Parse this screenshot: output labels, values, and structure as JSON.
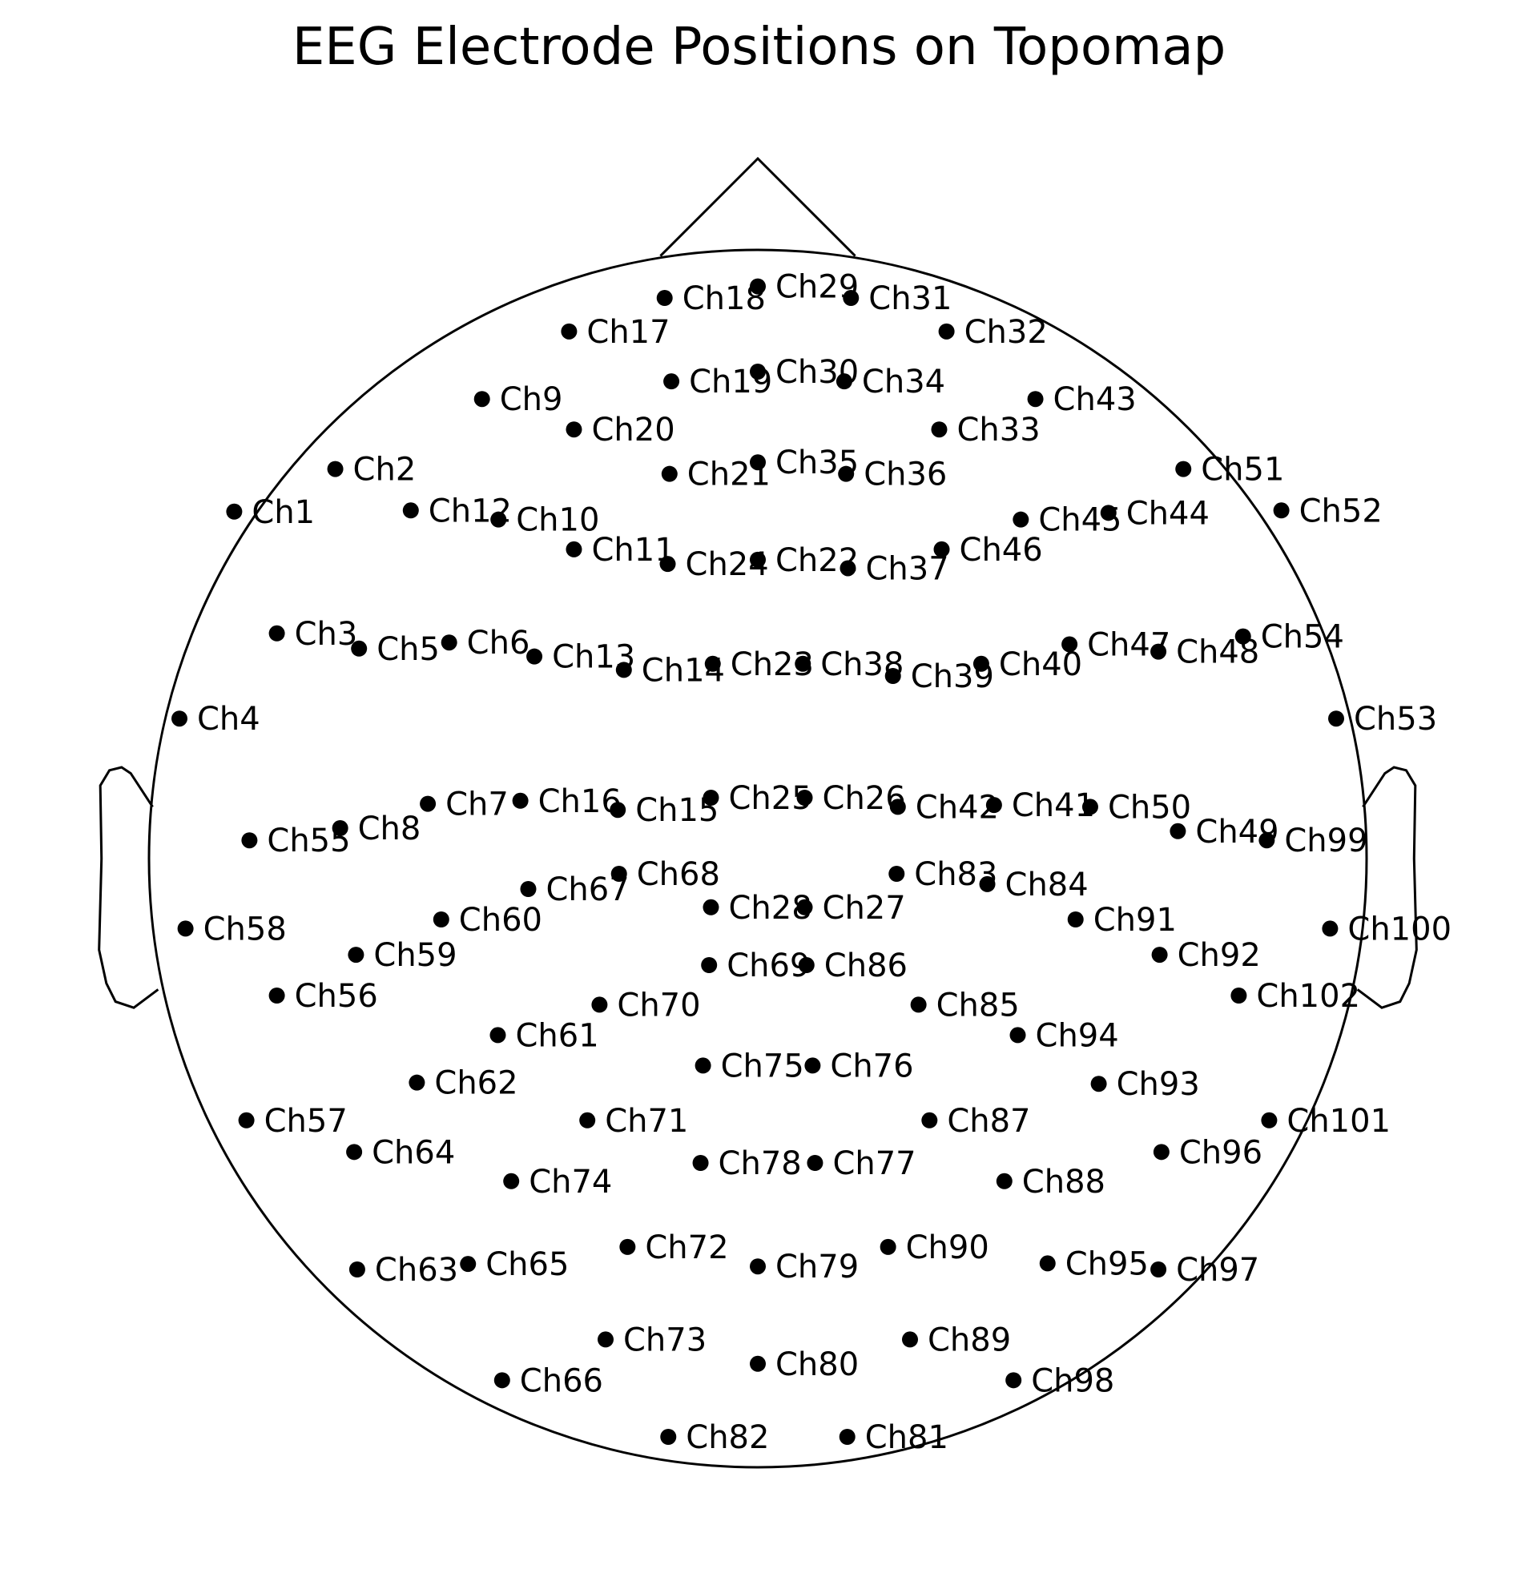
{
  "title": "EEG Electrode Positions on Topomap",
  "colors": {
    "line": "#000000",
    "marker": "#000000",
    "background": "#ffffff"
  },
  "chart_data": {
    "type": "scatter",
    "title": "EEG Electrode Positions on Topomap",
    "xlabel": "",
    "ylabel": "",
    "grid": false,
    "axes_visible": false,
    "units": "normalized head radius (head circle = 1.0)",
    "head": {
      "radius": 1.0,
      "nose": true,
      "ears": true
    },
    "points": [
      {
        "label": "Ch1",
        "x": -0.86,
        "y": 0.57
      },
      {
        "label": "Ch2",
        "x": -0.694,
        "y": 0.64
      },
      {
        "label": "Ch3",
        "x": -0.79,
        "y": 0.37
      },
      {
        "label": "Ch4",
        "x": -0.95,
        "y": 0.23
      },
      {
        "label": "Ch5",
        "x": -0.655,
        "y": 0.345
      },
      {
        "label": "Ch6",
        "x": -0.507,
        "y": 0.355
      },
      {
        "label": "Ch7",
        "x": -0.542,
        "y": 0.09
      },
      {
        "label": "Ch8",
        "x": -0.686,
        "y": 0.05
      },
      {
        "label": "Ch9",
        "x": -0.453,
        "y": 0.755
      },
      {
        "label": "Ch10",
        "x": -0.426,
        "y": 0.557
      },
      {
        "label": "Ch11",
        "x": -0.302,
        "y": 0.508
      },
      {
        "label": "Ch12",
        "x": -0.57,
        "y": 0.572
      },
      {
        "label": "Ch13",
        "x": -0.367,
        "y": 0.332
      },
      {
        "label": "Ch14",
        "x": -0.22,
        "y": 0.31
      },
      {
        "label": "Ch15",
        "x": -0.23,
        "y": 0.08
      },
      {
        "label": "Ch16",
        "x": -0.39,
        "y": 0.095
      },
      {
        "label": "Ch17",
        "x": -0.31,
        "y": 0.866
      },
      {
        "label": "Ch18",
        "x": -0.153,
        "y": 0.921
      },
      {
        "label": "Ch19",
        "x": -0.142,
        "y": 0.784
      },
      {
        "label": "Ch20",
        "x": -0.302,
        "y": 0.705
      },
      {
        "label": "Ch21",
        "x": -0.145,
        "y": 0.632
      },
      {
        "label": "Ch22",
        "x": 0.0,
        "y": 0.491
      },
      {
        "label": "Ch23",
        "x": -0.074,
        "y": 0.32
      },
      {
        "label": "Ch24",
        "x": -0.148,
        "y": 0.484
      },
      {
        "label": "Ch25",
        "x": -0.077,
        "y": 0.1
      },
      {
        "label": "Ch26",
        "x": 0.077,
        "y": 0.1
      },
      {
        "label": "Ch27",
        "x": 0.077,
        "y": -0.08
      },
      {
        "label": "Ch28",
        "x": -0.077,
        "y": -0.08
      },
      {
        "label": "Ch29",
        "x": 0.0,
        "y": 0.94
      },
      {
        "label": "Ch30",
        "x": 0.0,
        "y": 0.8
      },
      {
        "label": "Ch31",
        "x": 0.153,
        "y": 0.921
      },
      {
        "label": "Ch32",
        "x": 0.31,
        "y": 0.866
      },
      {
        "label": "Ch33",
        "x": 0.298,
        "y": 0.705
      },
      {
        "label": "Ch34",
        "x": 0.142,
        "y": 0.784
      },
      {
        "label": "Ch35",
        "x": 0.0,
        "y": 0.651
      },
      {
        "label": "Ch36",
        "x": 0.145,
        "y": 0.632
      },
      {
        "label": "Ch37",
        "x": 0.148,
        "y": 0.477
      },
      {
        "label": "Ch38",
        "x": 0.074,
        "y": 0.32
      },
      {
        "label": "Ch39",
        "x": 0.222,
        "y": 0.3
      },
      {
        "label": "Ch40",
        "x": 0.367,
        "y": 0.32
      },
      {
        "label": "Ch41",
        "x": 0.388,
        "y": 0.088
      },
      {
        "label": "Ch42",
        "x": 0.23,
        "y": 0.085
      },
      {
        "label": "Ch43",
        "x": 0.456,
        "y": 0.755
      },
      {
        "label": "Ch44",
        "x": 0.576,
        "y": 0.568
      },
      {
        "label": "Ch45",
        "x": 0.432,
        "y": 0.557
      },
      {
        "label": "Ch46",
        "x": 0.302,
        "y": 0.508
      },
      {
        "label": "Ch47",
        "x": 0.512,
        "y": 0.352
      },
      {
        "label": "Ch48",
        "x": 0.658,
        "y": 0.34
      },
      {
        "label": "Ch49",
        "x": 0.69,
        "y": 0.045
      },
      {
        "label": "Ch50",
        "x": 0.546,
        "y": 0.085
      },
      {
        "label": "Ch51",
        "x": 0.699,
        "y": 0.64
      },
      {
        "label": "Ch52",
        "x": 0.86,
        "y": 0.572
      },
      {
        "label": "Ch53",
        "x": 0.95,
        "y": 0.23
      },
      {
        "label": "Ch54",
        "x": 0.797,
        "y": 0.365
      },
      {
        "label": "Ch55",
        "x": -0.835,
        "y": 0.03
      },
      {
        "label": "Ch56",
        "x": -0.79,
        "y": -0.225
      },
      {
        "label": "Ch57",
        "x": -0.84,
        "y": -0.43
      },
      {
        "label": "Ch58",
        "x": -0.94,
        "y": -0.115
      },
      {
        "label": "Ch59",
        "x": -0.66,
        "y": -0.158
      },
      {
        "label": "Ch60",
        "x": -0.52,
        "y": -0.1
      },
      {
        "label": "Ch61",
        "x": -0.427,
        "y": -0.29
      },
      {
        "label": "Ch62",
        "x": -0.56,
        "y": -0.368
      },
      {
        "label": "Ch63",
        "x": -0.658,
        "y": -0.675
      },
      {
        "label": "Ch64",
        "x": -0.663,
        "y": -0.482
      },
      {
        "label": "Ch65",
        "x": -0.476,
        "y": -0.666
      },
      {
        "label": "Ch66",
        "x": -0.42,
        "y": -0.857
      },
      {
        "label": "Ch67",
        "x": -0.377,
        "y": -0.05
      },
      {
        "label": "Ch68",
        "x": -0.228,
        "y": -0.025
      },
      {
        "label": "Ch69",
        "x": -0.08,
        "y": -0.175
      },
      {
        "label": "Ch70",
        "x": -0.26,
        "y": -0.24
      },
      {
        "label": "Ch71",
        "x": -0.28,
        "y": -0.43
      },
      {
        "label": "Ch72",
        "x": -0.214,
        "y": -0.638
      },
      {
        "label": "Ch73",
        "x": -0.25,
        "y": -0.79
      },
      {
        "label": "Ch74",
        "x": -0.405,
        "y": -0.53
      },
      {
        "label": "Ch75",
        "x": -0.09,
        "y": -0.34
      },
      {
        "label": "Ch76",
        "x": 0.09,
        "y": -0.34
      },
      {
        "label": "Ch77",
        "x": 0.094,
        "y": -0.5
      },
      {
        "label": "Ch78",
        "x": -0.094,
        "y": -0.5
      },
      {
        "label": "Ch79",
        "x": 0.0,
        "y": -0.67
      },
      {
        "label": "Ch80",
        "x": 0.0,
        "y": -0.83
      },
      {
        "label": "Ch81",
        "x": 0.147,
        "y": -0.95
      },
      {
        "label": "Ch82",
        "x": -0.147,
        "y": -0.95
      },
      {
        "label": "Ch83",
        "x": 0.228,
        "y": -0.025
      },
      {
        "label": "Ch84",
        "x": 0.377,
        "y": -0.042
      },
      {
        "label": "Ch85",
        "x": 0.264,
        "y": -0.24
      },
      {
        "label": "Ch86",
        "x": 0.08,
        "y": -0.175
      },
      {
        "label": "Ch87",
        "x": 0.282,
        "y": -0.43
      },
      {
        "label": "Ch88",
        "x": 0.405,
        "y": -0.53
      },
      {
        "label": "Ch89",
        "x": 0.25,
        "y": -0.79
      },
      {
        "label": "Ch90",
        "x": 0.214,
        "y": -0.638
      },
      {
        "label": "Ch91",
        "x": 0.522,
        "y": -0.1
      },
      {
        "label": "Ch92",
        "x": 0.66,
        "y": -0.158
      },
      {
        "label": "Ch93",
        "x": 0.56,
        "y": -0.37
      },
      {
        "label": "Ch94",
        "x": 0.427,
        "y": -0.29
      },
      {
        "label": "Ch95",
        "x": 0.476,
        "y": -0.665
      },
      {
        "label": "Ch96",
        "x": 0.663,
        "y": -0.482
      },
      {
        "label": "Ch97",
        "x": 0.658,
        "y": -0.675
      },
      {
        "label": "Ch98",
        "x": 0.42,
        "y": -0.857
      },
      {
        "label": "Ch99",
        "x": 0.836,
        "y": 0.03
      },
      {
        "label": "Ch100",
        "x": 0.94,
        "y": -0.115
      },
      {
        "label": "Ch101",
        "x": 0.84,
        "y": -0.43
      },
      {
        "label": "Ch102",
        "x": 0.79,
        "y": -0.225
      }
    ]
  }
}
